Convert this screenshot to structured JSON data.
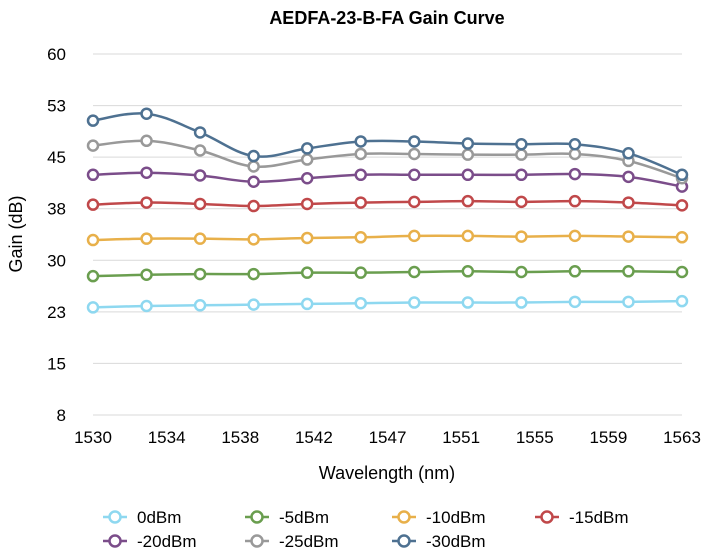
{
  "chart_data": {
    "type": "line",
    "title": "AEDFA-23-B-FA Gain Curve",
    "xlabel": "Wavelength (nm)",
    "ylabel": "Gain (dB)",
    "ylim": [
      8,
      60
    ],
    "y_ticks": [
      "60",
      "53",
      "45",
      "38",
      "30",
      "23",
      "15",
      "8"
    ],
    "x_ticks": [
      "1530",
      "1534",
      "1538",
      "1542",
      "1547",
      "1551",
      "1555",
      "1559",
      "1563"
    ],
    "grid": "horizontal",
    "legend_position": "bottom",
    "series": [
      {
        "name": "0dBm",
        "color": "#8ed8f0",
        "values": [
          23.5,
          23.7,
          23.8,
          23.9,
          24.0,
          24.1,
          24.2,
          24.2,
          24.2,
          24.3,
          24.3,
          24.4
        ]
      },
      {
        "name": "-5dBm",
        "color": "#6a9e4f",
        "values": [
          28.0,
          28.2,
          28.3,
          28.3,
          28.5,
          28.5,
          28.6,
          28.7,
          28.6,
          28.7,
          28.7,
          28.6
        ]
      },
      {
        "name": "-10dBm",
        "color": "#e8b04a",
        "values": [
          33.2,
          33.4,
          33.4,
          33.3,
          33.5,
          33.6,
          33.8,
          33.8,
          33.7,
          33.8,
          33.7,
          33.6
        ]
      },
      {
        "name": "-15dBm",
        "color": "#c0484a",
        "values": [
          38.3,
          38.6,
          38.4,
          38.1,
          38.4,
          38.6,
          38.7,
          38.8,
          38.7,
          38.8,
          38.6,
          38.2
        ]
      },
      {
        "name": "-20dBm",
        "color": "#7b4d8a",
        "values": [
          42.6,
          42.9,
          42.5,
          41.6,
          42.1,
          42.6,
          42.6,
          42.6,
          42.6,
          42.7,
          42.3,
          40.9
        ]
      },
      {
        "name": "-25dBm",
        "color": "#999999",
        "values": [
          46.8,
          47.5,
          46.1,
          43.8,
          44.8,
          45.6,
          45.6,
          45.5,
          45.5,
          45.6,
          44.6,
          42.1
        ]
      },
      {
        "name": "-30dBm",
        "color": "#4e7191",
        "values": [
          50.4,
          51.4,
          48.7,
          45.3,
          46.4,
          47.4,
          47.4,
          47.1,
          47.0,
          47.0,
          45.7,
          42.6
        ]
      }
    ]
  }
}
